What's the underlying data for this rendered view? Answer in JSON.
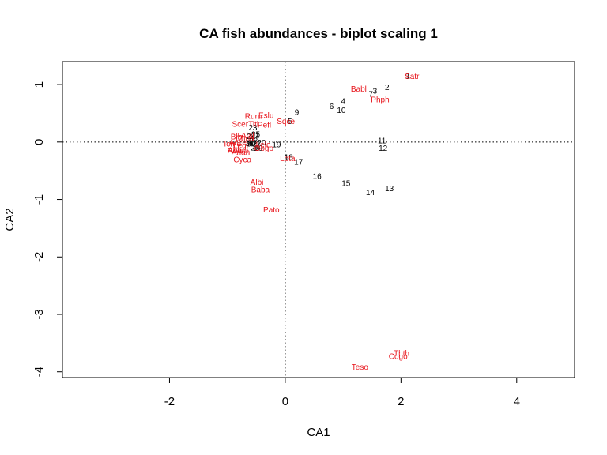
{
  "chart_data": {
    "type": "scatter",
    "title": "CA fish abundances - biplot scaling 1",
    "xlabel": "CA1",
    "ylabel": "CA2",
    "xlim": [
      -3.85,
      5.0
    ],
    "ylim": [
      -4.1,
      1.4
    ],
    "xticks": [
      -2,
      0,
      2,
      4
    ],
    "xtick_labels": [
      "-2",
      "0",
      "2",
      "4"
    ],
    "yticks": [
      -4,
      -3,
      -2,
      -1,
      0,
      1
    ],
    "ytick_labels": [
      "-4",
      "-3",
      "-2",
      "-1",
      "0",
      "1"
    ],
    "grid": false,
    "legend": "none",
    "reference_lines": {
      "x": 0,
      "y": 0,
      "style": "dotted"
    },
    "series": [
      {
        "name": "",
        "color": "#000000",
        "points": [
          {
            "label": "1",
            "x": 2.12,
            "y": 1.16
          },
          {
            "label": "2",
            "x": 1.76,
            "y": 0.96
          },
          {
            "label": "3",
            "x": 1.55,
            "y": 0.9
          },
          {
            "label": "4",
            "x": 1.0,
            "y": 0.72
          },
          {
            "label": "5",
            "x": 0.08,
            "y": 0.37
          },
          {
            "label": "6",
            "x": 0.8,
            "y": 0.63
          },
          {
            "label": "7",
            "x": 1.48,
            "y": 0.84
          },
          {
            "label": "8",
            "x": -0.61,
            "y": 0.0
          },
          {
            "label": "9",
            "x": 0.2,
            "y": 0.53
          },
          {
            "label": "10",
            "x": 0.97,
            "y": 0.56
          },
          {
            "label": "11",
            "x": 1.67,
            "y": 0.03
          },
          {
            "label": "12",
            "x": 1.69,
            "y": -0.1
          },
          {
            "label": "13",
            "x": 1.8,
            "y": -0.8
          },
          {
            "label": "14",
            "x": 1.47,
            "y": -0.87
          },
          {
            "label": "15",
            "x": 1.05,
            "y": -0.71
          },
          {
            "label": "16",
            "x": 0.55,
            "y": -0.59
          },
          {
            "label": "17",
            "x": 0.23,
            "y": -0.34
          },
          {
            "label": "18",
            "x": 0.06,
            "y": -0.26
          },
          {
            "label": "19",
            "x": -0.15,
            "y": -0.04
          },
          {
            "label": "20",
            "x": -0.41,
            "y": 0.0
          },
          {
            "label": "21",
            "x": -0.52,
            "y": 0.13
          },
          {
            "label": "22",
            "x": -0.59,
            "y": 0.11
          },
          {
            "label": "23",
            "x": -0.56,
            "y": 0.26
          },
          {
            "label": "24",
            "x": -0.62,
            "y": -0.01
          },
          {
            "label": "25",
            "x": -0.51,
            "y": 0.14
          },
          {
            "label": "26",
            "x": -0.52,
            "y": -0.09
          },
          {
            "label": "27",
            "x": -0.49,
            "y": -0.02
          },
          {
            "label": "28",
            "x": -0.55,
            "y": 0.03
          },
          {
            "label": "29",
            "x": -0.46,
            "y": -0.1
          },
          {
            "label": "30",
            "x": -0.59,
            "y": -0.02
          }
        ]
      },
      {
        "name": "",
        "color": "#e8141b",
        "points": [
          {
            "label": "Cogo",
            "x": 1.95,
            "y": -3.72
          },
          {
            "label": "Satr",
            "x": 2.19,
            "y": 1.15
          },
          {
            "label": "Phph",
            "x": 1.64,
            "y": 0.75
          },
          {
            "label": "Babl",
            "x": 1.27,
            "y": 0.93
          },
          {
            "label": "Thth",
            "x": 2.01,
            "y": -3.67
          },
          {
            "label": "Teso",
            "x": 1.29,
            "y": -3.91
          },
          {
            "label": "Chna",
            "x": -0.7,
            "y": 0.07
          },
          {
            "label": "Pato",
            "x": -0.24,
            "y": -1.17
          },
          {
            "label": "Lele",
            "x": -0.38,
            "y": -0.04
          },
          {
            "label": "Sqce",
            "x": 0.01,
            "y": 0.37
          },
          {
            "label": "Baba",
            "x": -0.43,
            "y": -0.82
          },
          {
            "label": "Albi",
            "x": -0.49,
            "y": -0.69
          },
          {
            "label": "Gogo",
            "x": -0.37,
            "y": -0.1
          },
          {
            "label": "Eslu",
            "x": -0.33,
            "y": 0.47
          },
          {
            "label": "Pefl",
            "x": -0.36,
            "y": 0.31
          },
          {
            "label": "Rham",
            "x": -0.82,
            "y": -0.14
          },
          {
            "label": "Legi",
            "x": -0.77,
            "y": -0.05
          },
          {
            "label": "Scer",
            "x": -0.78,
            "y": 0.32
          },
          {
            "label": "Cyca",
            "x": -0.74,
            "y": -0.3
          },
          {
            "label": "Titi",
            "x": -0.55,
            "y": 0.32
          },
          {
            "label": "Abbr",
            "x": -0.85,
            "y": -0.13
          },
          {
            "label": "Icme",
            "x": -0.91,
            "y": -0.02
          },
          {
            "label": "Acce",
            "x": -0.82,
            "y": 0.0
          },
          {
            "label": "Ruru",
            "x": -0.55,
            "y": 0.46
          },
          {
            "label": "Blbj",
            "x": -0.83,
            "y": 0.1
          },
          {
            "label": "Alal",
            "x": -0.65,
            "y": 0.12
          },
          {
            "label": "Anan",
            "x": -0.77,
            "y": -0.17
          },
          {
            "label": "Lota",
            "x": 0.04,
            "y": -0.28
          }
        ]
      }
    ]
  }
}
